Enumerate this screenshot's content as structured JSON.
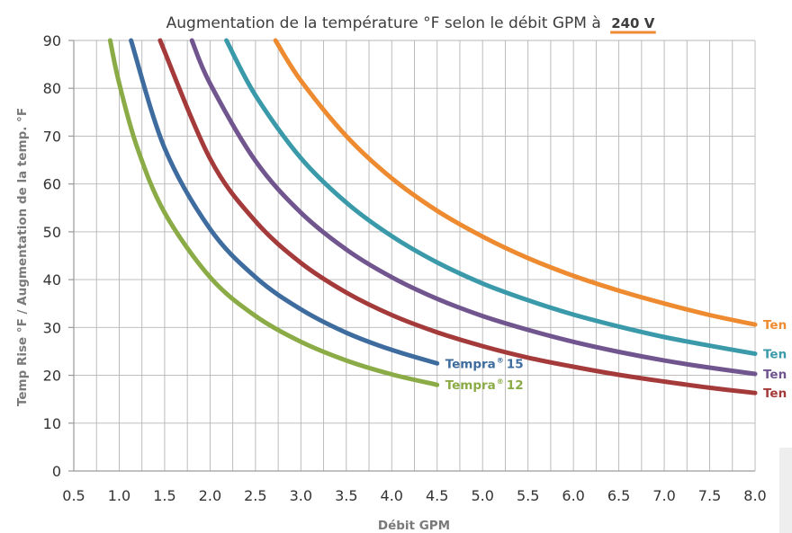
{
  "chart_data": {
    "type": "line",
    "title": "Augmentation de la température °F selon le débit GPM à",
    "title_emphasis": "240 V",
    "xlabel": "Débit GPM",
    "ylabel": "Temp Rise °F / Augmentation de la temp. °F",
    "xlim": [
      0.5,
      8.0
    ],
    "ylim": [
      0,
      90
    ],
    "x_ticks": [
      "0.5",
      "1.0",
      "1.5",
      "2.0",
      "2.5",
      "3.0",
      "3.5",
      "4.0",
      "4.5",
      "5.0",
      "5.5",
      "6.0",
      "6.5",
      "7.0",
      "7.5",
      "8.0"
    ],
    "y_ticks": [
      "0",
      "10",
      "20",
      "30",
      "40",
      "50",
      "60",
      "70",
      "80",
      "90"
    ],
    "grid": true,
    "series": [
      {
        "label": "Tempra",
        "label_sup": "®",
        "label_num": "12",
        "color": "#8bab46",
        "x": [
          0.9,
          1.0,
          1.2,
          1.5,
          2.0,
          2.5,
          3.0,
          3.5,
          4.0,
          4.5
        ],
        "y": [
          90,
          81,
          67.5,
          54,
          40.5,
          32.4,
          27,
          23.1,
          20.2,
          18
        ]
      },
      {
        "label": "Tempra",
        "label_sup": "®",
        "label_num": "15",
        "color": "#3e6c9e",
        "x": [
          1.13,
          1.5,
          2.0,
          2.5,
          3.0,
          3.5,
          4.0,
          4.5
        ],
        "y": [
          90,
          67.5,
          50.6,
          40.5,
          33.8,
          28.9,
          25.3,
          22.5
        ]
      },
      {
        "label": "Ten",
        "color": "#a53a3b",
        "x": [
          1.45,
          2.0,
          2.5,
          3.0,
          3.5,
          4.0,
          4.5,
          5.0,
          5.5,
          6.0,
          6.5,
          7.0,
          7.5,
          8.0
        ],
        "y": [
          90,
          65.3,
          52.2,
          43.5,
          37.3,
          32.6,
          29,
          26.1,
          23.7,
          21.8,
          20.1,
          18.7,
          17.4,
          16.3
        ]
      },
      {
        "label": "Ten",
        "color": "#70558e",
        "x": [
          1.8,
          2.0,
          2.5,
          3.0,
          3.5,
          4.0,
          4.5,
          5.0,
          5.5,
          6.0,
          6.5,
          7.0,
          7.5,
          8.0
        ],
        "y": [
          90,
          81,
          64.8,
          54,
          46.3,
          40.5,
          36,
          32.4,
          29.5,
          27,
          24.9,
          23.1,
          21.6,
          20.3
        ]
      },
      {
        "label": "Ten",
        "color": "#3a9aaa",
        "x": [
          2.18,
          2.5,
          3.0,
          3.5,
          4.0,
          4.5,
          5.0,
          5.5,
          6.0,
          6.5,
          7.0,
          7.5,
          8.0
        ],
        "y": [
          90,
          78.5,
          65.4,
          56.1,
          49.1,
          43.6,
          39.2,
          35.7,
          32.7,
          30.2,
          28,
          26.2,
          24.5
        ]
      },
      {
        "label": "Ten",
        "color": "#ee8a30",
        "x": [
          2.72,
          3.0,
          3.5,
          4.0,
          4.5,
          5.0,
          5.5,
          6.0,
          6.5,
          7.0,
          7.5,
          8.0
        ],
        "y": [
          90,
          81.6,
          70,
          61.2,
          54.4,
          49,
          44.5,
          40.8,
          37.7,
          35,
          32.6,
          30.6
        ]
      }
    ]
  }
}
